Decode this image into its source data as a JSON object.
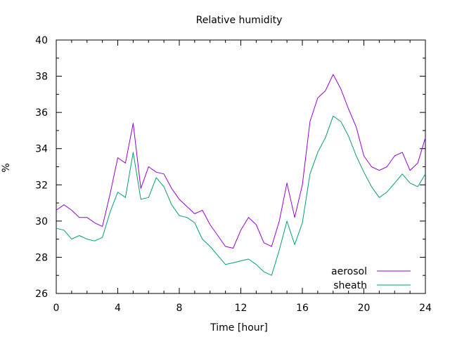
{
  "chart_data": {
    "type": "line",
    "title": "Relative humidity",
    "xlabel": "Time [hour]",
    "ylabel": "%",
    "xlim": [
      0,
      24
    ],
    "ylim": [
      26,
      40
    ],
    "xticks": [
      "0",
      "4",
      "8",
      "12",
      "16",
      "20",
      "24"
    ],
    "yticks": [
      "26",
      "28",
      "30",
      "32",
      "34",
      "36",
      "38",
      "40"
    ],
    "grid": false,
    "legend_position": "bottom-right",
    "series": [
      {
        "name": "aerosol",
        "color": "#9400d3",
        "x": [
          0,
          0.5,
          1,
          1.5,
          2,
          2.5,
          3,
          3.5,
          4,
          4.5,
          5,
          5.5,
          6,
          6.5,
          7,
          7.5,
          8,
          8.5,
          9,
          9.5,
          10,
          10.5,
          11,
          11.5,
          12,
          12.5,
          13,
          13.5,
          14,
          14.5,
          15,
          15.5,
          16,
          16.5,
          17,
          17.5,
          18,
          18.5,
          19,
          19.5,
          20,
          20.5,
          21,
          21.5,
          22,
          22.5,
          23,
          23.5,
          24
        ],
        "y": [
          30.6,
          30.9,
          30.6,
          30.2,
          30.2,
          29.9,
          29.7,
          31.5,
          33.5,
          33.2,
          35.4,
          31.8,
          33.0,
          32.7,
          32.6,
          31.8,
          31.2,
          30.8,
          30.4,
          30.6,
          29.8,
          29.2,
          28.6,
          28.5,
          29.5,
          30.2,
          29.8,
          28.8,
          28.6,
          30.0,
          32.1,
          30.2,
          32.0,
          35.5,
          36.8,
          37.2,
          38.1,
          37.3,
          36.2,
          35.2,
          33.6,
          33.0,
          32.8,
          33.0,
          33.6,
          33.8,
          32.8,
          33.2,
          34.6
        ]
      },
      {
        "name": "sheath",
        "color": "#009e73",
        "x": [
          0,
          0.5,
          1,
          1.5,
          2,
          2.5,
          3,
          3.5,
          4,
          4.5,
          5,
          5.5,
          6,
          6.5,
          7,
          7.5,
          8,
          8.5,
          9,
          9.5,
          10,
          10.5,
          11,
          11.5,
          12,
          12.5,
          13,
          13.5,
          14,
          14.5,
          15,
          15.5,
          16,
          16.5,
          17,
          17.5,
          18,
          18.5,
          19,
          19.5,
          20,
          20.5,
          21,
          21.5,
          22,
          22.5,
          23,
          23.5,
          24
        ],
        "y": [
          29.6,
          29.5,
          29.0,
          29.2,
          29.0,
          28.9,
          29.1,
          30.5,
          31.6,
          31.3,
          33.8,
          31.2,
          31.3,
          32.4,
          31.9,
          30.9,
          30.3,
          30.2,
          29.9,
          29.0,
          28.6,
          28.1,
          27.6,
          27.7,
          27.8,
          27.9,
          27.6,
          27.2,
          27.0,
          28.4,
          30.0,
          28.7,
          29.9,
          32.6,
          33.8,
          34.6,
          35.8,
          35.5,
          34.7,
          33.6,
          32.7,
          31.9,
          31.3,
          31.6,
          32.1,
          32.6,
          32.1,
          31.9,
          32.6
        ]
      }
    ]
  }
}
